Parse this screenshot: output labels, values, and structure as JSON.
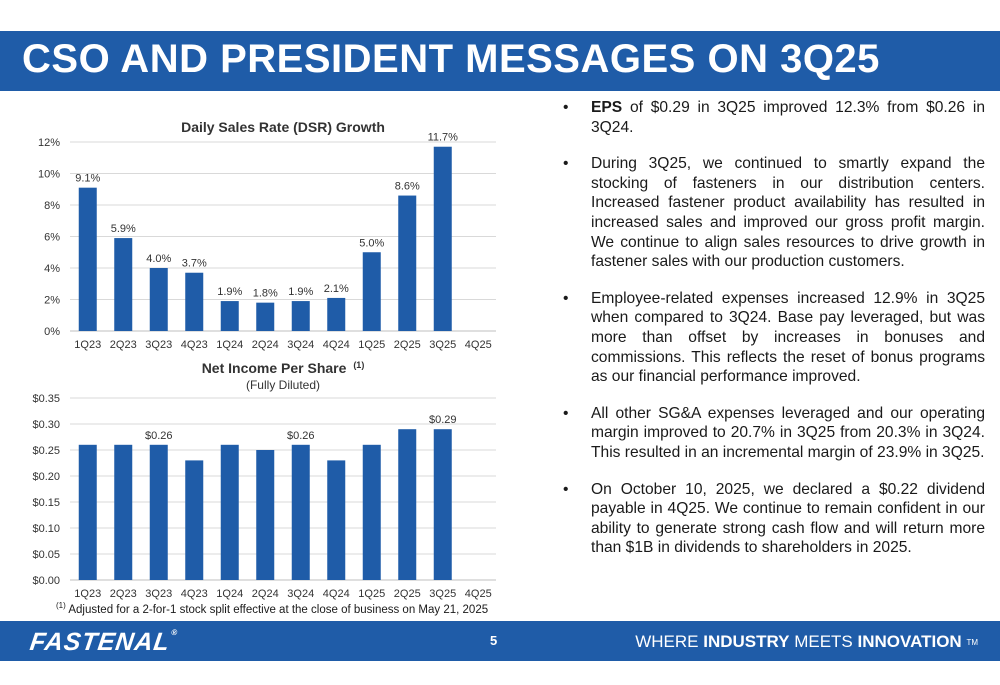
{
  "slide": {
    "title": "CSO AND PRESIDENT MESSAGES ON 3Q25",
    "page_number": "5"
  },
  "chart_data": [
    {
      "type": "bar",
      "title": "Daily Sales Rate (DSR) Growth",
      "categories": [
        "1Q23",
        "2Q23",
        "3Q23",
        "4Q23",
        "1Q24",
        "2Q24",
        "3Q24",
        "4Q24",
        "1Q25",
        "2Q25",
        "3Q25",
        "4Q25"
      ],
      "values": [
        9.1,
        5.9,
        4.0,
        3.7,
        1.9,
        1.8,
        1.9,
        2.1,
        5.0,
        8.6,
        11.7,
        null
      ],
      "data_labels": [
        "9.1%",
        "5.9%",
        "4.0%",
        "3.7%",
        "1.9%",
        "1.8%",
        "1.9%",
        "2.1%",
        "5.0%",
        "8.6%",
        "11.7%",
        ""
      ],
      "y_ticks": [
        "0%",
        "2%",
        "4%",
        "6%",
        "8%",
        "10%",
        "12%"
      ],
      "ylim": [
        0,
        12
      ],
      "grid": true,
      "bar_color": "#1f5ca8"
    },
    {
      "type": "bar",
      "title": "Net Income Per Share",
      "title_superscript": "(1)",
      "subtitle": "(Fully Diluted)",
      "categories": [
        "1Q23",
        "2Q23",
        "3Q23",
        "4Q23",
        "1Q24",
        "2Q24",
        "3Q24",
        "4Q24",
        "1Q25",
        "2Q25",
        "3Q25",
        "4Q25"
      ],
      "values": [
        0.26,
        0.26,
        0.26,
        0.23,
        0.26,
        0.25,
        0.26,
        0.23,
        0.26,
        0.29,
        0.29,
        null
      ],
      "data_labels": [
        "",
        "",
        "$0.26",
        "",
        "",
        "",
        "$0.26",
        "",
        "",
        "",
        "$0.29",
        ""
      ],
      "y_ticks": [
        "$0.00",
        "$0.05",
        "$0.10",
        "$0.15",
        "$0.20",
        "$0.25",
        "$0.30",
        "$0.35"
      ],
      "ylim": [
        0,
        0.35
      ],
      "grid": true,
      "bar_color": "#1f5ca8"
    }
  ],
  "bullets": [
    {
      "bold": "EPS",
      "text": " of $0.29 in 3Q25 improved 12.3% from $0.26 in 3Q24."
    },
    {
      "bold": "",
      "text": "During 3Q25, we continued to smartly expand the stocking of fasteners in our distribution centers. Increased fastener product availability has resulted in increased sales and improved our gross profit margin. We continue to align sales resources to drive growth in fastener sales with our production customers."
    },
    {
      "bold": "",
      "text": "Employee-related expenses increased 12.9% in 3Q25 when compared to 3Q24. Base pay leveraged, but was more than offset by increases in bonuses and commissions. This reflects the reset of bonus programs as our financial performance improved."
    },
    {
      "bold": "",
      "text": "All other SG&A expenses leveraged and our operating margin improved to 20.7% in 3Q25 from 20.3% in 3Q24. This resulted in an incremental margin of 23.9% in 3Q25."
    },
    {
      "bold": "",
      "text": "On October 10, 2025, we declared a $0.22 dividend payable in 4Q25. We continue to remain confident in our ability to generate strong cash flow and will return more than $1B in dividends to shareholders in 2025."
    }
  ],
  "bullet_glyph": "•",
  "footnote": {
    "marker": "(1)",
    "text": " Adjusted for a 2-for-1 stock split effective at the close of business on May 21, 2025"
  },
  "footer": {
    "logo": "FASTENAL",
    "logo_mark": "®",
    "tagline_1": "WHERE ",
    "tagline_2": "INDUSTRY",
    "tagline_3": " MEETS ",
    "tagline_4": "INNOVATION",
    "tagline_tm": "TM"
  }
}
